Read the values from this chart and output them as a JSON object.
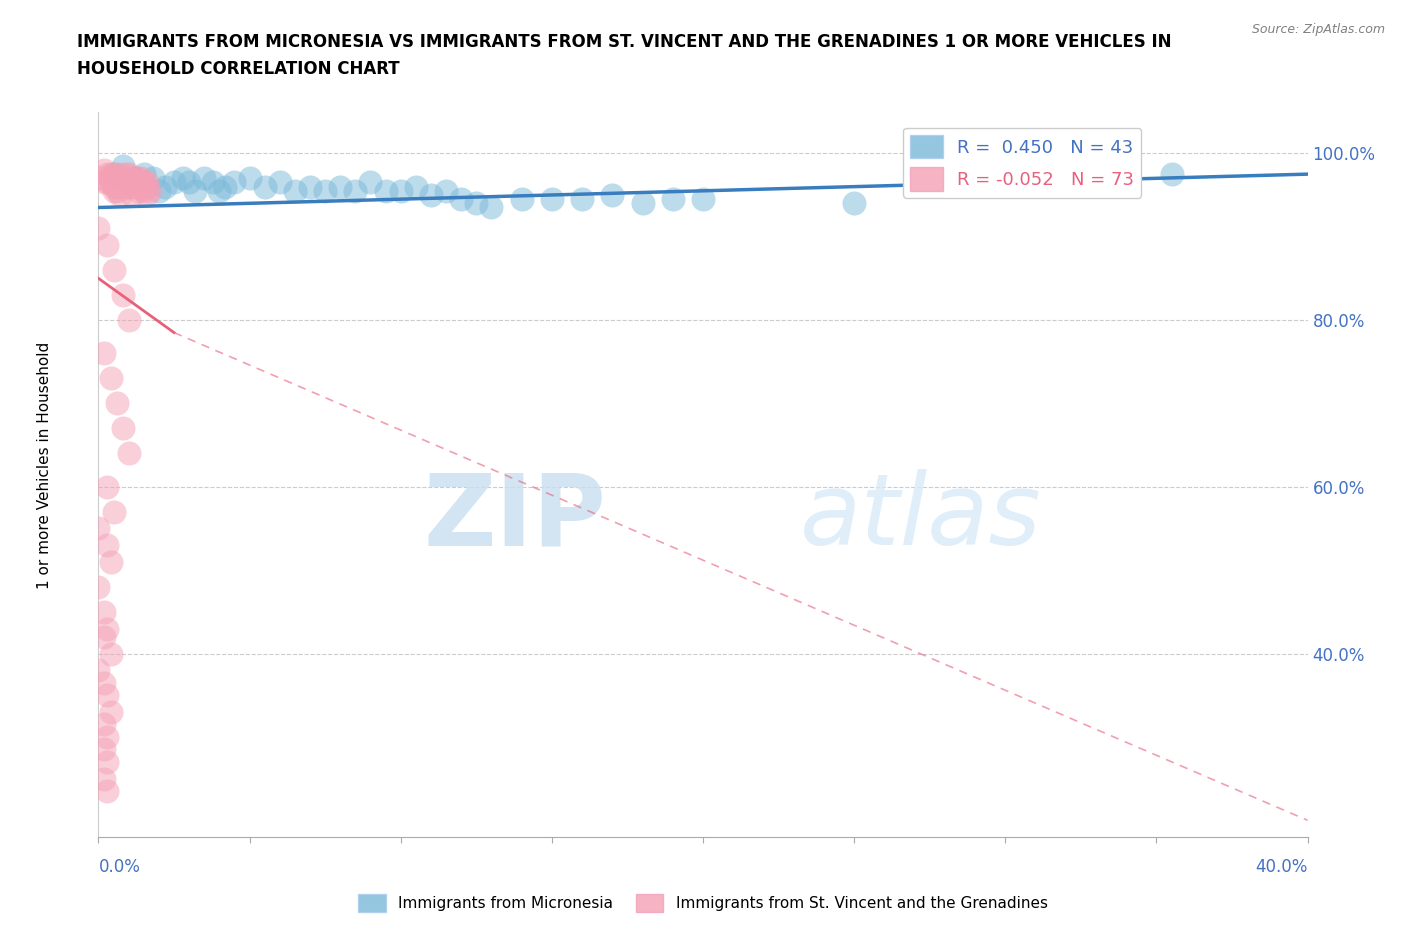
{
  "title": "IMMIGRANTS FROM MICRONESIA VS IMMIGRANTS FROM ST. VINCENT AND THE GRENADINES 1 OR MORE VEHICLES IN\nHOUSEHOLD CORRELATION CHART",
  "source": "Source: ZipAtlas.com",
  "ylabel": "1 or more Vehicles in Household",
  "ytick_labels": [
    "100.0%",
    "80.0%",
    "60.0%",
    "40.0%"
  ],
  "ytick_values": [
    100.0,
    80.0,
    60.0,
    40.0
  ],
  "xlim": [
    0.0,
    40.0
  ],
  "ylim": [
    18.0,
    105.0
  ],
  "R_blue": 0.45,
  "N_blue": 43,
  "R_pink": -0.052,
  "N_pink": 73,
  "legend_label_blue": "Immigrants from Micronesia",
  "legend_label_pink": "Immigrants from St. Vincent and the Grenadines",
  "watermark_zip": "ZIP",
  "watermark_atlas": "atlas",
  "blue_color": "#7ab8d9",
  "pink_color": "#f4a0b5",
  "blue_line_color": "#3a7dbf",
  "pink_line_color": "#e8607a",
  "blue_scatter": [
    [
      0.5,
      97.5
    ],
    [
      0.8,
      98.5
    ],
    [
      1.0,
      96.5
    ],
    [
      1.2,
      97.0
    ],
    [
      1.5,
      97.5
    ],
    [
      1.8,
      97.0
    ],
    [
      2.0,
      95.5
    ],
    [
      2.2,
      96.0
    ],
    [
      2.5,
      96.5
    ],
    [
      2.8,
      97.0
    ],
    [
      3.0,
      96.5
    ],
    [
      3.2,
      95.5
    ],
    [
      3.5,
      97.0
    ],
    [
      3.8,
      96.5
    ],
    [
      4.0,
      95.5
    ],
    [
      4.2,
      96.0
    ],
    [
      4.5,
      96.5
    ],
    [
      5.0,
      97.0
    ],
    [
      5.5,
      96.0
    ],
    [
      6.0,
      96.5
    ],
    [
      6.5,
      95.5
    ],
    [
      7.0,
      96.0
    ],
    [
      7.5,
      95.5
    ],
    [
      8.0,
      96.0
    ],
    [
      8.5,
      95.5
    ],
    [
      9.0,
      96.5
    ],
    [
      9.5,
      95.5
    ],
    [
      10.0,
      95.5
    ],
    [
      10.5,
      96.0
    ],
    [
      11.0,
      95.0
    ],
    [
      11.5,
      95.5
    ],
    [
      12.0,
      94.5
    ],
    [
      12.5,
      94.0
    ],
    [
      13.0,
      93.5
    ],
    [
      14.0,
      94.5
    ],
    [
      15.0,
      94.5
    ],
    [
      16.0,
      94.5
    ],
    [
      17.0,
      95.0
    ],
    [
      18.0,
      94.0
    ],
    [
      19.0,
      94.5
    ],
    [
      20.0,
      94.5
    ],
    [
      25.0,
      94.0
    ],
    [
      35.5,
      97.5
    ]
  ],
  "pink_scatter": [
    [
      0.1,
      97.0
    ],
    [
      0.2,
      98.0
    ],
    [
      0.3,
      97.5
    ],
    [
      0.4,
      96.5
    ],
    [
      0.4,
      97.5
    ],
    [
      0.5,
      96.0
    ],
    [
      0.5,
      97.5
    ],
    [
      0.6,
      97.0
    ],
    [
      0.6,
      96.0
    ],
    [
      0.7,
      96.5
    ],
    [
      0.7,
      97.5
    ],
    [
      0.8,
      96.0
    ],
    [
      0.8,
      97.0
    ],
    [
      0.9,
      96.5
    ],
    [
      0.9,
      97.5
    ],
    [
      1.0,
      96.0
    ],
    [
      1.0,
      97.0
    ],
    [
      1.1,
      96.5
    ],
    [
      1.2,
      97.0
    ],
    [
      1.2,
      96.0
    ],
    [
      1.3,
      96.5
    ],
    [
      1.3,
      95.5
    ],
    [
      1.4,
      96.0
    ],
    [
      1.5,
      96.5
    ],
    [
      1.5,
      95.5
    ],
    [
      1.6,
      95.0
    ],
    [
      1.6,
      96.0
    ],
    [
      1.7,
      95.5
    ],
    [
      0.3,
      96.5
    ],
    [
      0.5,
      95.5
    ],
    [
      0.7,
      95.0
    ],
    [
      0.9,
      96.0
    ],
    [
      1.1,
      95.0
    ],
    [
      1.3,
      97.0
    ],
    [
      0.2,
      96.5
    ],
    [
      0.4,
      97.0
    ],
    [
      0.6,
      95.5
    ],
    [
      0.8,
      96.5
    ],
    [
      1.0,
      97.5
    ],
    [
      1.2,
      96.5
    ],
    [
      1.4,
      97.0
    ],
    [
      1.6,
      96.5
    ],
    [
      0.0,
      91.0
    ],
    [
      0.3,
      89.0
    ],
    [
      0.5,
      86.0
    ],
    [
      0.8,
      83.0
    ],
    [
      1.0,
      80.0
    ],
    [
      0.2,
      76.0
    ],
    [
      0.4,
      73.0
    ],
    [
      0.6,
      70.0
    ],
    [
      0.8,
      67.0
    ],
    [
      1.0,
      64.0
    ],
    [
      0.3,
      60.0
    ],
    [
      0.5,
      57.0
    ],
    [
      0.0,
      55.0
    ],
    [
      0.3,
      53.0
    ],
    [
      0.4,
      51.0
    ],
    [
      0.0,
      48.0
    ],
    [
      0.2,
      45.0
    ],
    [
      0.3,
      43.0
    ],
    [
      0.2,
      42.0
    ],
    [
      0.4,
      40.0
    ],
    [
      0.0,
      38.0
    ],
    [
      0.2,
      36.5
    ],
    [
      0.3,
      35.0
    ],
    [
      0.4,
      33.0
    ],
    [
      0.2,
      31.5
    ],
    [
      0.3,
      30.0
    ],
    [
      0.2,
      28.5
    ],
    [
      0.3,
      27.0
    ],
    [
      0.2,
      25.0
    ],
    [
      0.3,
      23.5
    ]
  ],
  "pink_line_solid": [
    [
      0.0,
      85.0
    ],
    [
      2.5,
      78.5
    ]
  ],
  "pink_line_dashed": [
    [
      2.5,
      78.5
    ],
    [
      40.0,
      20.0
    ]
  ],
  "blue_line": [
    [
      0.0,
      93.5
    ],
    [
      40.0,
      97.5
    ]
  ]
}
